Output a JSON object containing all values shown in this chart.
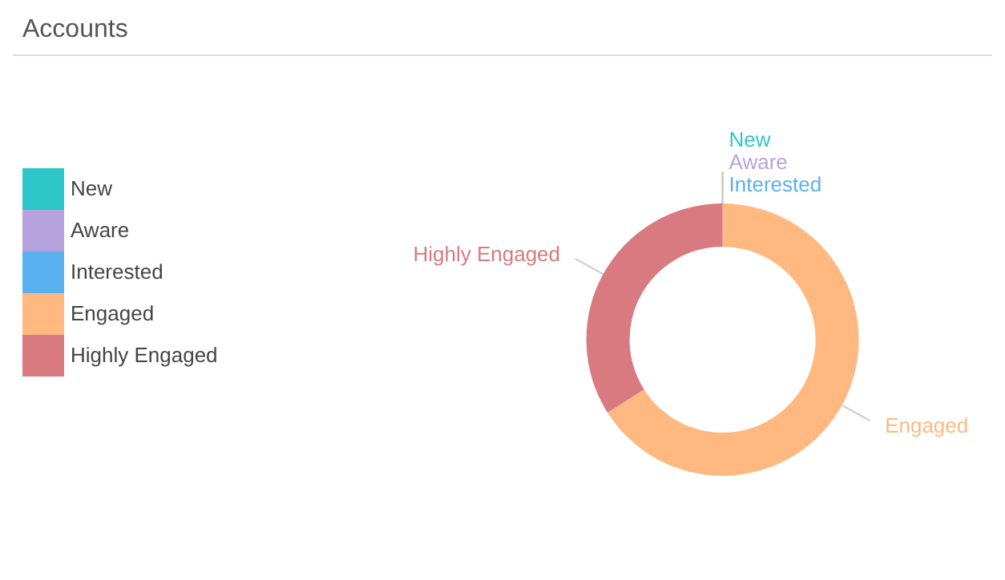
{
  "chart_data": {
    "type": "donut",
    "title": "Accounts",
    "categories": [
      "New",
      "Aware",
      "Interested",
      "Engaged",
      "Highly Engaged"
    ],
    "values": [
      0,
      0,
      0,
      66,
      34
    ],
    "colors": [
      "#2ec7c9",
      "#b6a2de",
      "#5ab1ef",
      "#ffb980",
      "#d87a80"
    ],
    "legend": "left"
  }
}
